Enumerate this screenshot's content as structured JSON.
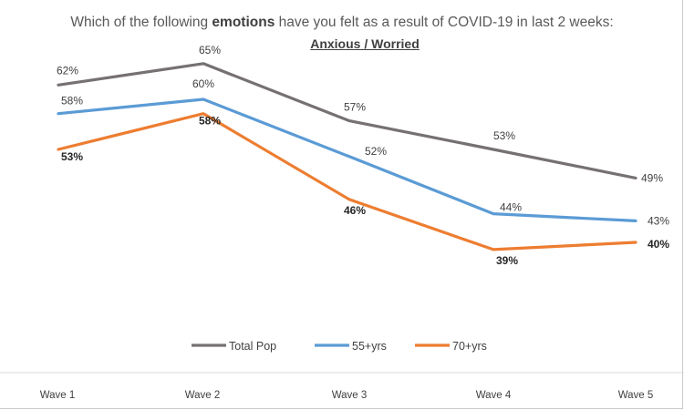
{
  "chart_data": {
    "type": "line",
    "title_prefix": "Which of the following ",
    "title_emphasis": "emotions",
    "title_suffix": " have you felt as a result of COVID-19 in last 2 weeks:",
    "subtitle": "Anxious / Worried",
    "categories": [
      "Wave 1",
      "Wave 2",
      "Wave 3",
      "Wave 4",
      "Wave 5"
    ],
    "ylim": [
      0,
      100
    ],
    "legend_position": "bottom",
    "series": [
      {
        "name": "Total Pop",
        "color": "#767171",
        "values": [
          62,
          65,
          57,
          53,
          49
        ],
        "labels": [
          "62%",
          "65%",
          "57%",
          "53%",
          "49%"
        ]
      },
      {
        "name": "55+yrs",
        "color": "#5B9BD5",
        "values": [
          58,
          60,
          52,
          44,
          43
        ],
        "labels": [
          "58%",
          "60%",
          "52%",
          "44%",
          "43%"
        ]
      },
      {
        "name": "70+yrs",
        "color": "#ED7D31",
        "values": [
          53,
          58,
          46,
          39,
          40
        ],
        "labels": [
          "53%",
          "58%",
          "46%",
          "39%",
          "40%"
        ]
      }
    ]
  }
}
